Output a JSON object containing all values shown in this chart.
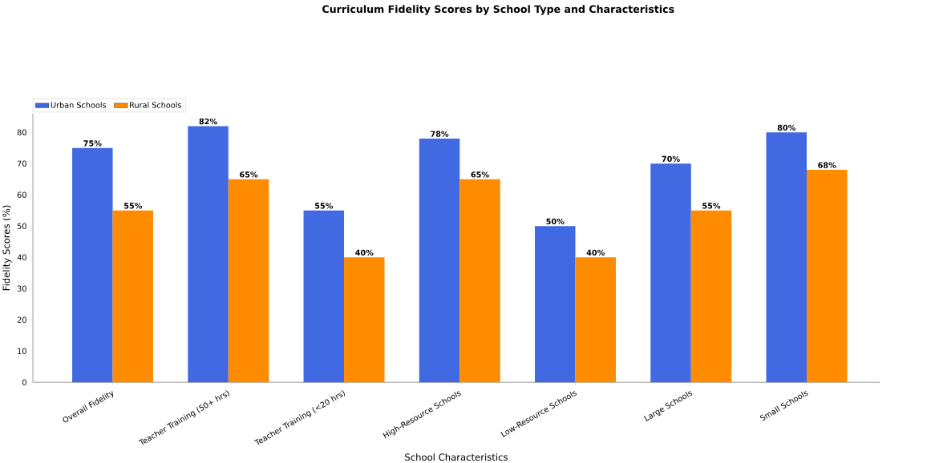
{
  "chart_data": {
    "type": "bar",
    "title": "Curriculum Fidelity Scores by School Type and Characteristics",
    "xlabel": "School Characteristics",
    "ylabel": "Fidelity Scores (%)",
    "categories": [
      "Overall Fidelity",
      "Teacher Training (50+ hrs)",
      "Teacher Training (<20 hrs)",
      "High-Resource Schools",
      "Low-Resource Schools",
      "Large Schools",
      "Small Schools"
    ],
    "series": [
      {
        "name": "Urban Schools",
        "color": "#4169e1",
        "values": [
          75,
          82,
          55,
          78,
          50,
          70,
          80
        ],
        "value_labels": [
          "75%",
          "82%",
          "55%",
          "78%",
          "50%",
          "70%",
          "80%"
        ]
      },
      {
        "name": "Rural Schools",
        "color": "#ff8c00",
        "values": [
          55,
          65,
          40,
          65,
          40,
          55,
          68
        ],
        "value_labels": [
          "55%",
          "65%",
          "40%",
          "65%",
          "40%",
          "55%",
          "68%"
        ]
      }
    ],
    "ylim": [
      0,
      86
    ],
    "yticks": [
      0,
      10,
      20,
      30,
      40,
      50,
      60,
      70,
      80
    ],
    "legend": "top left",
    "grid": false
  }
}
